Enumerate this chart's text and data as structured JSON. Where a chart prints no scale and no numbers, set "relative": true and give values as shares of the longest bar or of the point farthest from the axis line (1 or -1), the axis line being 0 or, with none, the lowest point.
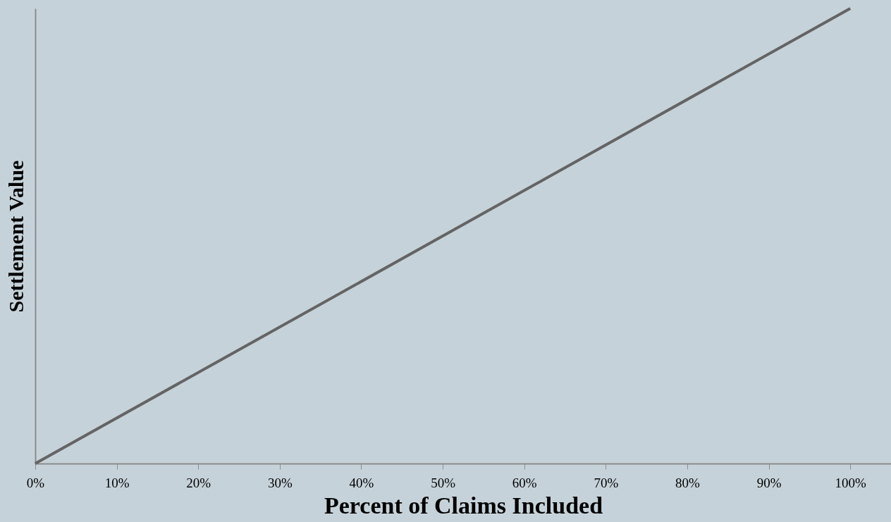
{
  "chart_data": {
    "type": "line",
    "xlabel": "Percent of Claims Included",
    "ylabel": "Settlement Value",
    "x": [
      0,
      100
    ],
    "series": [
      {
        "color": "#646464",
        "values": [
          0,
          1
        ]
      }
    ],
    "relative": true,
    "xlim": [
      0,
      105
    ],
    "xticks": [
      {
        "value": 0,
        "label": "0%"
      },
      {
        "value": 10,
        "label": "10%"
      },
      {
        "value": 20,
        "label": "20%"
      },
      {
        "value": 30,
        "label": "30%"
      },
      {
        "value": 40,
        "label": "40%"
      },
      {
        "value": 50,
        "label": "50%"
      },
      {
        "value": 60,
        "label": "60%"
      },
      {
        "value": 70,
        "label": "70%"
      },
      {
        "value": 80,
        "label": "80%"
      },
      {
        "value": 90,
        "label": "90%"
      },
      {
        "value": 100,
        "label": "100%"
      }
    ],
    "grid": false,
    "marker": "none",
    "line_style": "solid"
  }
}
